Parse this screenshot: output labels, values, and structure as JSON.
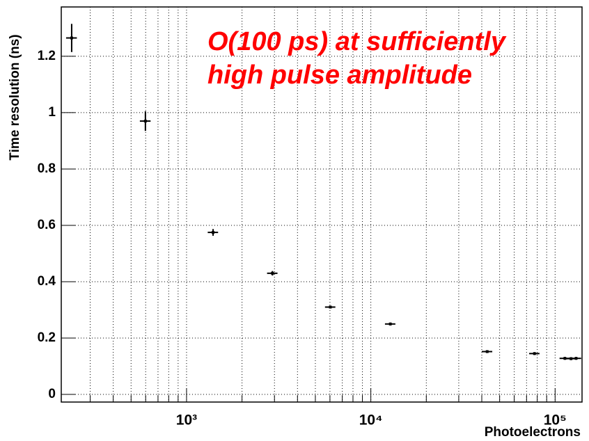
{
  "chart_data": {
    "type": "errorbar",
    "xlabel": "Photoelectrons",
    "ylabel": "Time resolution (ns)",
    "annotation": [
      "O(100 ps) at sufficiently",
      "high pulse amplitude"
    ],
    "annotation_color": "#ff0000",
    "x": [
      238,
      598,
      1393,
      2925,
      6030,
      12760,
      42800,
      77300,
      113000,
      122000,
      130000
    ],
    "xerr": [
      16,
      40,
      90,
      190,
      390,
      830,
      2800,
      5000,
      7300,
      7900,
      8400
    ],
    "values": [
      1.265,
      0.97,
      0.575,
      0.43,
      0.31,
      0.25,
      0.152,
      0.145,
      0.128,
      0.127,
      0.128
    ],
    "errors": [
      0.05,
      0.035,
      0.012,
      0.008,
      0.005,
      0.005,
      0.005,
      0.005,
      0.005,
      0.005,
      0.005
    ],
    "color": "#000000",
    "xlog": true,
    "grid": true,
    "xlim": [
      209,
      140000
    ],
    "ylim": [
      -0.027,
      1.375
    ],
    "xticks": [
      {
        "value": 1000,
        "label": "10³"
      },
      {
        "value": 10000,
        "label": "10⁴"
      },
      {
        "value": 100000,
        "label": "10⁵"
      }
    ],
    "xminorticks": [
      300,
      400,
      500,
      600,
      700,
      800,
      900,
      2000,
      3000,
      4000,
      5000,
      6000,
      7000,
      8000,
      9000,
      20000,
      30000,
      40000,
      50000,
      60000,
      70000,
      80000,
      90000
    ],
    "yticks": [
      0,
      0.2,
      0.4,
      0.6,
      0.8,
      1,
      1.2
    ]
  }
}
